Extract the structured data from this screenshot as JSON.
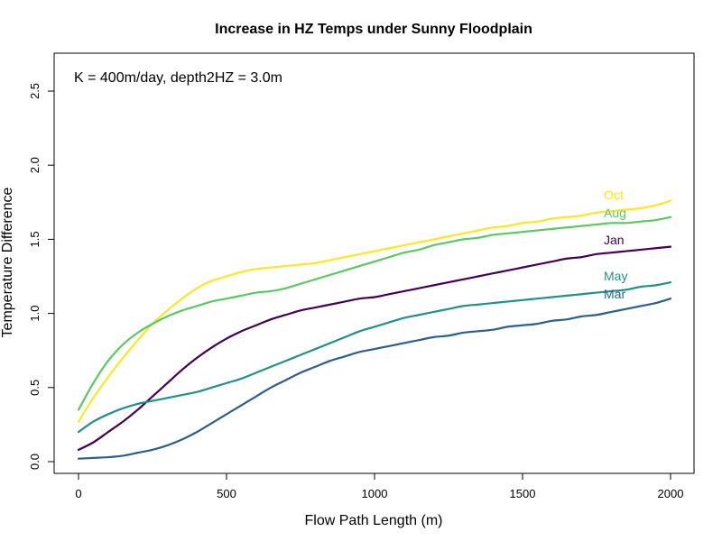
{
  "chart_data": {
    "type": "line",
    "title": "Increase in HZ Temps under Sunny Floodplain",
    "xlabel": "Flow Path Length (m)",
    "ylabel": "Temperature Difference",
    "annotation": "K = 400m/day, depth2HZ = 3.0m",
    "xlim": [
      0,
      2000
    ],
    "ylim": [
      0,
      2.5
    ],
    "x_ticks": [
      "0",
      "500",
      "1000",
      "1500",
      "2000"
    ],
    "y_ticks": [
      "0.0",
      "0.5",
      "1.0",
      "1.5",
      "2.0",
      "2.5"
    ],
    "x": [
      0,
      50,
      100,
      150,
      200,
      250,
      300,
      350,
      400,
      450,
      500,
      550,
      600,
      650,
      700,
      750,
      800,
      850,
      900,
      950,
      1000,
      1050,
      1100,
      1150,
      1200,
      1250,
      1300,
      1350,
      1400,
      1450,
      1500,
      1550,
      1600,
      1650,
      1700,
      1750,
      1800,
      1850,
      1900,
      1950,
      2000
    ],
    "grid": false,
    "legend": "inline labels at right end of lines",
    "series": [
      {
        "name": "Oct",
        "color": "#FDE725",
        "values": [
          0.27,
          0.43,
          0.57,
          0.7,
          0.82,
          0.93,
          1.02,
          1.1,
          1.17,
          1.22,
          1.25,
          1.28,
          1.3,
          1.31,
          1.32,
          1.33,
          1.34,
          1.36,
          1.38,
          1.4,
          1.42,
          1.44,
          1.46,
          1.48,
          1.5,
          1.52,
          1.54,
          1.56,
          1.58,
          1.59,
          1.61,
          1.62,
          1.64,
          1.65,
          1.66,
          1.68,
          1.69,
          1.7,
          1.71,
          1.73,
          1.76
        ]
      },
      {
        "name": "Aug",
        "color": "#5DC863",
        "values": [
          0.35,
          0.53,
          0.68,
          0.79,
          0.87,
          0.93,
          0.98,
          1.02,
          1.05,
          1.08,
          1.1,
          1.12,
          1.14,
          1.15,
          1.17,
          1.2,
          1.23,
          1.26,
          1.29,
          1.32,
          1.35,
          1.38,
          1.41,
          1.43,
          1.46,
          1.48,
          1.5,
          1.51,
          1.53,
          1.54,
          1.55,
          1.56,
          1.57,
          1.58,
          1.59,
          1.6,
          1.61,
          1.61,
          1.62,
          1.63,
          1.65
        ]
      },
      {
        "name": "Jan",
        "color": "#440154",
        "values": [
          0.08,
          0.13,
          0.2,
          0.27,
          0.35,
          0.44,
          0.53,
          0.62,
          0.7,
          0.77,
          0.83,
          0.88,
          0.92,
          0.96,
          0.99,
          1.02,
          1.04,
          1.06,
          1.08,
          1.1,
          1.11,
          1.13,
          1.15,
          1.17,
          1.19,
          1.21,
          1.23,
          1.25,
          1.27,
          1.29,
          1.31,
          1.33,
          1.35,
          1.37,
          1.38,
          1.4,
          1.41,
          1.42,
          1.43,
          1.44,
          1.45
        ]
      },
      {
        "name": "May",
        "color": "#21908C",
        "values": [
          0.2,
          0.27,
          0.32,
          0.36,
          0.39,
          0.41,
          0.43,
          0.45,
          0.47,
          0.5,
          0.53,
          0.56,
          0.6,
          0.64,
          0.68,
          0.72,
          0.76,
          0.8,
          0.84,
          0.88,
          0.91,
          0.94,
          0.97,
          0.99,
          1.01,
          1.03,
          1.05,
          1.06,
          1.07,
          1.08,
          1.09,
          1.1,
          1.11,
          1.12,
          1.13,
          1.14,
          1.15,
          1.16,
          1.18,
          1.19,
          1.21
        ]
      },
      {
        "name": "Mar",
        "color": "#2C5F8A",
        "values": [
          0.02,
          0.025,
          0.03,
          0.04,
          0.06,
          0.08,
          0.11,
          0.15,
          0.2,
          0.26,
          0.32,
          0.38,
          0.44,
          0.5,
          0.55,
          0.6,
          0.64,
          0.68,
          0.71,
          0.74,
          0.76,
          0.78,
          0.8,
          0.82,
          0.84,
          0.85,
          0.87,
          0.88,
          0.89,
          0.91,
          0.92,
          0.93,
          0.95,
          0.96,
          0.98,
          0.99,
          1.01,
          1.03,
          1.05,
          1.07,
          1.1
        ]
      }
    ]
  }
}
